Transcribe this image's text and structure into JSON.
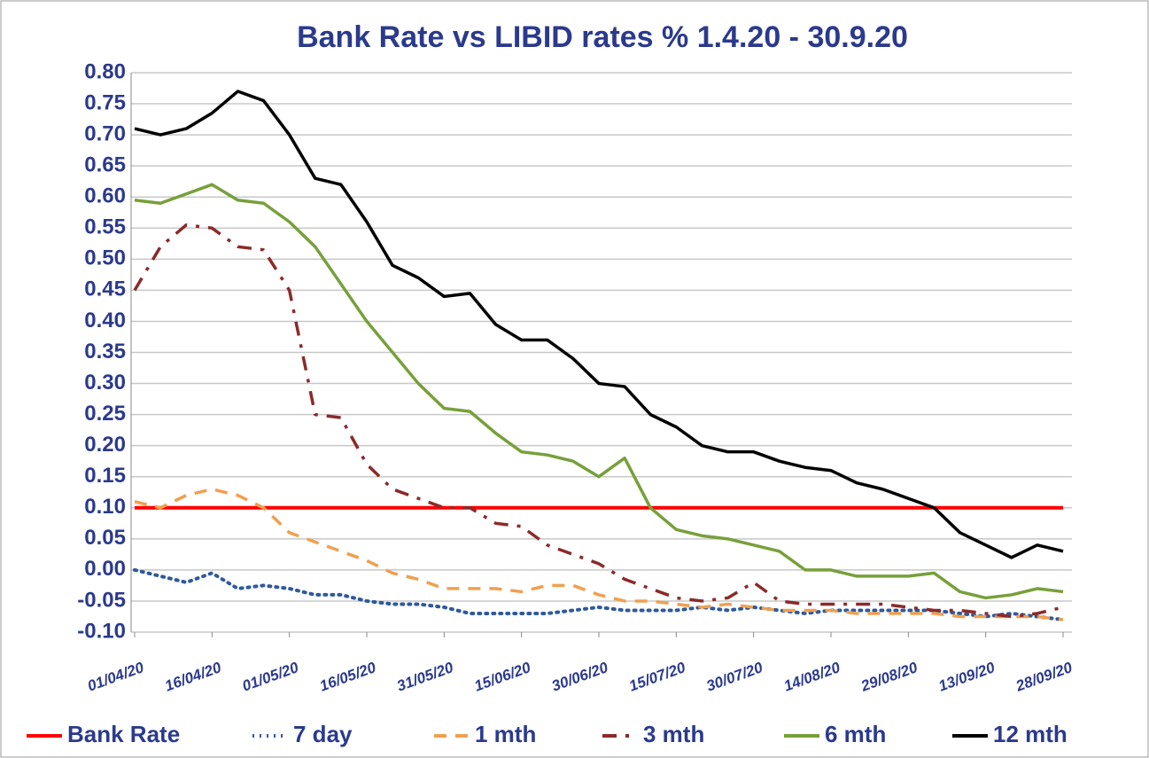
{
  "chart_data": {
    "type": "line",
    "title": "Bank Rate vs LIBID rates % 1.4.20 - 30.9.20",
    "categories": [
      "01/04/20",
      null,
      null,
      "16/04/20",
      null,
      null,
      "01/05/20",
      null,
      null,
      "16/05/20",
      null,
      null,
      "31/05/20",
      null,
      null,
      "15/06/20",
      null,
      null,
      "30/06/20",
      null,
      null,
      "15/07/20",
      null,
      null,
      "30/07/20",
      null,
      null,
      "14/08/20",
      null,
      null,
      "29/08/20",
      null,
      null,
      "13/09/20",
      null,
      null,
      "28/09/20"
    ],
    "ylim": [
      -0.1,
      0.8
    ],
    "yticks": [
      {
        "value": -0.1,
        "label": "-0.10"
      },
      -0.05,
      {
        "value": 0,
        "label": "0.00"
      },
      0.05,
      {
        "value": 0.1,
        "label": "0.10"
      },
      0.15,
      {
        "value": 0.2,
        "label": "0.20"
      },
      0.25,
      {
        "value": 0.3,
        "label": "0.30"
      },
      0.35,
      {
        "value": 0.4,
        "label": "0.40"
      },
      0.45,
      {
        "value": 0.5,
        "label": "0.50"
      },
      0.55,
      {
        "value": 0.6,
        "label": "0.60"
      },
      0.65,
      {
        "value": 0.7,
        "label": "0.70"
      },
      0.75,
      {
        "value": 0.8,
        "label": "0.80"
      }
    ],
    "grid": true,
    "legend": "bottom",
    "series": [
      {
        "name": "Bank Rate",
        "color": "#ff0000",
        "dash": "solid",
        "values": [
          0.1,
          0.1,
          0.1,
          0.1,
          0.1,
          0.1,
          0.1,
          0.1,
          0.1,
          0.1,
          0.1,
          0.1,
          0.1,
          0.1,
          0.1,
          0.1,
          0.1,
          0.1,
          0.1,
          0.1,
          0.1,
          0.1,
          0.1,
          0.1,
          0.1,
          0.1,
          0.1,
          0.1,
          0.1,
          0.1,
          0.1,
          0.1,
          0.1,
          0.1,
          0.1,
          0.1,
          0.1
        ]
      },
      {
        "name": "7 day",
        "color": "#2e5a9c",
        "dash": "dotted",
        "values": [
          0,
          -0.01,
          -0.02,
          -0.005,
          -0.03,
          -0.025,
          -0.03,
          -0.04,
          -0.04,
          -0.05,
          -0.055,
          -0.055,
          -0.06,
          -0.07,
          -0.07,
          -0.07,
          -0.07,
          -0.065,
          -0.06,
          -0.065,
          -0.065,
          -0.065,
          -0.06,
          -0.065,
          -0.06,
          -0.065,
          -0.07,
          -0.065,
          -0.065,
          -0.065,
          -0.065,
          -0.065,
          -0.07,
          -0.075,
          -0.07,
          -0.075,
          -0.08
        ]
      },
      {
        "name": "1 mth",
        "color": "#f0a050",
        "dash": "dashed",
        "values": [
          0.11,
          0.1,
          0.12,
          0.13,
          0.12,
          0.1,
          0.06,
          0.045,
          0.03,
          0.015,
          -0.005,
          -0.015,
          -0.03,
          -0.03,
          -0.03,
          -0.035,
          -0.025,
          -0.025,
          -0.04,
          -0.05,
          -0.05,
          -0.055,
          -0.06,
          -0.055,
          -0.06,
          -0.065,
          -0.065,
          -0.065,
          -0.07,
          -0.07,
          -0.07,
          -0.07,
          -0.075,
          -0.075,
          -0.075,
          -0.075,
          -0.08
        ]
      },
      {
        "name": "3 mth",
        "color": "#8b2a2a",
        "dash": "dashdot",
        "values": [
          0.45,
          0.52,
          0.555,
          0.55,
          0.52,
          0.515,
          0.45,
          0.25,
          0.245,
          0.17,
          0.13,
          0.115,
          0.1,
          0.1,
          0.075,
          0.07,
          0.04,
          0.025,
          0.01,
          -0.015,
          -0.03,
          -0.045,
          -0.05,
          -0.045,
          -0.02,
          -0.05,
          -0.055,
          -0.055,
          -0.055,
          -0.055,
          -0.06,
          -0.065,
          -0.065,
          -0.07,
          -0.075,
          -0.07,
          -0.06
        ]
      },
      {
        "name": "6 mth",
        "color": "#77a03a",
        "dash": "solid",
        "values": [
          0.595,
          0.59,
          0.605,
          0.62,
          0.595,
          0.59,
          0.56,
          0.52,
          0.46,
          0.4,
          0.35,
          0.3,
          0.26,
          0.255,
          0.22,
          0.19,
          0.185,
          0.175,
          0.15,
          0.18,
          0.1,
          0.065,
          0.055,
          0.05,
          0.04,
          0.03,
          0,
          0,
          -0.01,
          -0.01,
          -0.01,
          -0.005,
          -0.035,
          -0.045,
          -0.04,
          -0.03,
          -0.035
        ]
      },
      {
        "name": "12 mth",
        "color": "#000000",
        "dash": "solid",
        "values": [
          0.71,
          0.7,
          0.71,
          0.735,
          0.77,
          0.755,
          0.7,
          0.63,
          0.62,
          0.56,
          0.49,
          0.47,
          0.44,
          0.445,
          0.395,
          0.37,
          0.37,
          0.34,
          0.3,
          0.295,
          0.25,
          0.23,
          0.2,
          0.19,
          0.19,
          0.175,
          0.165,
          0.16,
          0.14,
          0.13,
          0.115,
          0.1,
          0.06,
          0.04,
          0.02,
          0.04,
          0.03
        ]
      }
    ]
  }
}
